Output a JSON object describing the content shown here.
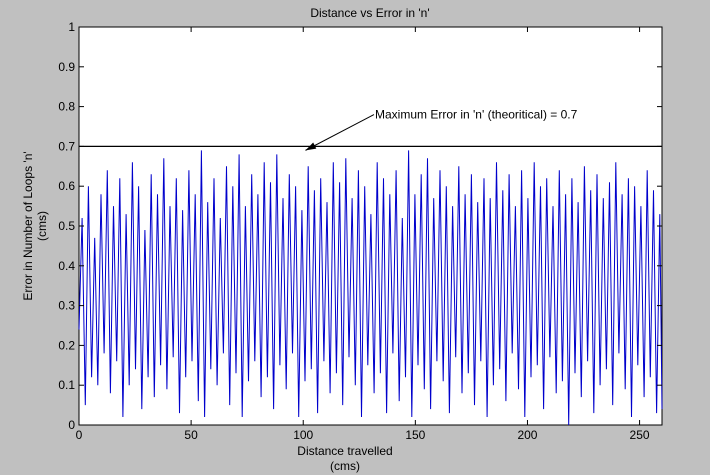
{
  "chart_data": {
    "type": "line",
    "title": "Distance vs Error in 'n'",
    "xlabel_line1": "Distance travelled",
    "xlabel_line2": "(cms)",
    "ylabel_line1": "Error in Number of Loops 'n'",
    "ylabel_line2": "(cms)",
    "xlim": [
      0,
      260
    ],
    "ylim": [
      0,
      1
    ],
    "x_ticks": [
      0,
      50,
      100,
      150,
      200,
      250
    ],
    "x_tick_labels": [
      "0",
      "50",
      "100",
      "150",
      "200",
      "250"
    ],
    "y_ticks": [
      0,
      0.1,
      0.2,
      0.3,
      0.4,
      0.5,
      0.6,
      0.7,
      0.8,
      0.9,
      1
    ],
    "y_tick_labels": [
      "0",
      "0.1",
      "0.2",
      "0.3",
      "0.4",
      "0.5",
      "0.6",
      "0.7",
      "0.8",
      "0.9",
      "1"
    ],
    "grid": false,
    "legend": "none",
    "colors": {
      "background": "#c0c0c0",
      "axes": "#ffffff",
      "series": "#0000cc",
      "threshold": "#000000"
    },
    "threshold": {
      "y": 0.7,
      "label": "Maximum Error in 'n' (theoritical) = 0.7"
    },
    "annotation": {
      "text": "Maximum Error in 'n' (theoritical) = 0.7",
      "text_at": [
        132,
        0.78
      ],
      "arrow_to": [
        101,
        0.69
      ]
    },
    "series": [
      {
        "x": [
          0,
          1.4,
          2.8,
          4.2,
          5.6,
          7,
          8.4,
          9.8,
          11.2,
          12.6,
          14,
          15.4,
          16.8,
          18.2,
          19.6,
          21,
          22.4,
          23.8,
          25.2,
          26.6,
          28,
          29.4,
          30.8,
          32.2,
          33.6,
          35,
          36.4,
          37.8,
          39.2,
          40.6,
          42,
          43.4,
          44.8,
          46.2,
          47.6,
          49,
          50.4,
          51.8,
          53.2,
          54.6,
          56,
          57.4,
          58.8,
          60.2,
          61.6,
          63,
          64.4,
          65.8,
          67.2,
          68.6,
          70,
          71.4,
          72.8,
          74.2,
          75.6,
          77,
          78.4,
          79.8,
          81.2,
          82.6,
          84,
          85.4,
          86.8,
          88.2,
          89.6,
          91,
          92.4,
          93.8,
          95.2,
          96.6,
          98,
          99.4,
          100.8,
          102.2,
          103.6,
          105,
          106.4,
          107.8,
          109.2,
          110.6,
          112,
          113.4,
          114.8,
          116.2,
          117.6,
          119,
          120.4,
          121.8,
          123.2,
          124.6,
          126,
          127.4,
          128.8,
          130.2,
          131.6,
          133,
          134.4,
          135.8,
          137.2,
          138.6,
          140,
          141.4,
          142.8,
          144.2,
          145.6,
          147,
          148.4,
          149.8,
          151.2,
          152.6,
          154,
          155.4,
          156.8,
          158.2,
          159.6,
          161,
          162.4,
          163.8,
          165.2,
          166.6,
          168,
          169.4,
          170.8,
          172.2,
          173.6,
          175,
          176.4,
          177.8,
          179.2,
          180.6,
          182,
          183.4,
          184.8,
          186.2,
          187.6,
          189,
          190.4,
          191.8,
          193.2,
          194.6,
          196,
          197.4,
          198.8,
          200.2,
          201.6,
          203,
          204.4,
          205.8,
          207.2,
          208.6,
          210,
          211.4,
          212.8,
          214.2,
          215.6,
          217,
          218.4,
          219.8,
          221.2,
          222.6,
          224,
          225.4,
          226.8,
          228.2,
          229.6,
          231,
          232.4,
          233.8,
          235.2,
          236.6,
          238,
          239.4,
          240.8,
          242.2,
          243.6,
          245,
          246.4,
          247.8,
          249.2,
          250.6,
          252,
          253.4,
          254.8,
          256.2,
          257.6,
          259,
          260
        ],
        "y": [
          0.24,
          0.52,
          0.05,
          0.6,
          0.12,
          0.47,
          0.1,
          0.58,
          0.18,
          0.64,
          0.08,
          0.55,
          0.16,
          0.62,
          0.02,
          0.53,
          0.1,
          0.66,
          0.14,
          0.6,
          0.04,
          0.49,
          0.12,
          0.63,
          0.07,
          0.58,
          0.15,
          0.67,
          0.09,
          0.55,
          0.17,
          0.62,
          0.03,
          0.54,
          0.12,
          0.64,
          0.16,
          0.58,
          0.06,
          0.69,
          0.02,
          0.56,
          0.14,
          0.62,
          0.1,
          0.52,
          0.18,
          0.65,
          0.05,
          0.6,
          0.13,
          0.68,
          0.02,
          0.55,
          0.11,
          0.63,
          0.16,
          0.58,
          0.07,
          0.66,
          0.12,
          0.61,
          0.04,
          0.68,
          0.15,
          0.57,
          0.09,
          0.63,
          0.18,
          0.6,
          0.02,
          0.54,
          0.11,
          0.65,
          0.14,
          0.59,
          0.03,
          0.62,
          0.16,
          0.56,
          0.08,
          0.66,
          0.13,
          0.61,
          0.05,
          0.67,
          0.17,
          0.57,
          0.1,
          0.64,
          0.02,
          0.6,
          0.15,
          0.53,
          0.08,
          0.66,
          0.13,
          0.62,
          0.03,
          0.58,
          0.18,
          0.64,
          0.06,
          0.52,
          0.12,
          0.69,
          0.02,
          0.58,
          0.15,
          0.63,
          0.09,
          0.67,
          0.04,
          0.57,
          0.16,
          0.64,
          0.11,
          0.6,
          0.03,
          0.55,
          0.17,
          0.65,
          0.08,
          0.58,
          0.13,
          0.63,
          0.05,
          0.56,
          0.16,
          0.62,
          0.02,
          0.57,
          0.1,
          0.66,
          0.14,
          0.59,
          0.06,
          0.63,
          0.18,
          0.55,
          0.09,
          0.64,
          0.02,
          0.57,
          0.12,
          0.66,
          0.15,
          0.6,
          0.04,
          0.62,
          0.17,
          0.55,
          0.08,
          0.64,
          0.11,
          0.58,
          0.0,
          0.62,
          0.13,
          0.56,
          0.07,
          0.65,
          0.16,
          0.59,
          0.03,
          0.63,
          0.1,
          0.57,
          0.14,
          0.61,
          0.05,
          0.66,
          0.18,
          0.58,
          0.09,
          0.62,
          0.02,
          0.6,
          0.15,
          0.55,
          0.07,
          0.64,
          0.12,
          0.59,
          0.03,
          0.53,
          0.04
        ]
      }
    ]
  }
}
